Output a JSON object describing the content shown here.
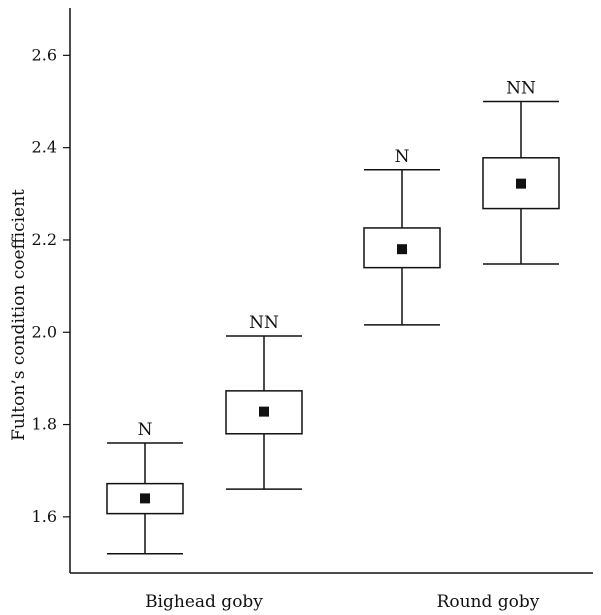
{
  "chart_data": {
    "type": "box",
    "ylabel": "Fulton’s condition coefficient",
    "ylim": [
      1.52,
      2.61
    ],
    "yticks": [
      1.6,
      1.8,
      2.0,
      2.2,
      2.4,
      2.6
    ],
    "ytick_labels": [
      "1.6",
      "1.8",
      "2.0",
      "2.2",
      "2.4",
      "2.6"
    ],
    "categories": [
      "Bighead goby",
      "Round goby"
    ],
    "boxes": [
      {
        "group": "Bighead goby",
        "label": "N",
        "min": 1.52,
        "q1": 1.607,
        "mean": 1.64,
        "q3": 1.672,
        "max": 1.76
      },
      {
        "group": "Bighead goby",
        "label": "NN",
        "min": 1.66,
        "q1": 1.78,
        "mean": 1.828,
        "q3": 1.873,
        "max": 1.992
      },
      {
        "group": "Round goby",
        "label": "N",
        "min": 2.016,
        "q1": 2.14,
        "mean": 2.18,
        "q3": 2.226,
        "max": 2.352
      },
      {
        "group": "Round goby",
        "label": "NN",
        "min": 2.148,
        "q1": 2.268,
        "mean": 2.322,
        "q3": 2.378,
        "max": 2.5
      }
    ],
    "grid": false,
    "legend": "none"
  }
}
